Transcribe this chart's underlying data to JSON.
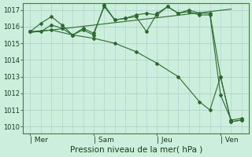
{
  "bg_color": "#cceedd",
  "grid_color": "#aacccc",
  "line_color": "#2d6a2d",
  "marker_color": "#2d6a2d",
  "ylabel_min": 1010,
  "ylabel_max": 1017,
  "xlabel": "Pression niveau de la mer( hPa )",
  "xtick_labels": [
    "| Mer",
    "| Sam",
    "| Jeu",
    "| Ven"
  ],
  "xtick_positions": [
    0,
    36,
    72,
    108
  ],
  "xlim": [
    -4,
    124
  ],
  "ylim": [
    1009.6,
    1017.4
  ],
  "series1_x": [
    0,
    6,
    12,
    18,
    24,
    30,
    36,
    42,
    48,
    54,
    60,
    66,
    72,
    78,
    84,
    90,
    96,
    102,
    108,
    114,
    120
  ],
  "series1_y": [
    1015.7,
    1016.2,
    1016.6,
    1016.1,
    1015.5,
    1015.9,
    1015.6,
    1017.2,
    1016.4,
    1016.5,
    1016.6,
    1015.7,
    1016.8,
    1017.2,
    1016.8,
    1017.0,
    1016.8,
    1016.8,
    1013.0,
    1010.3,
    1010.4
  ],
  "series2_x": [
    0,
    6,
    12,
    18,
    24,
    30,
    36,
    42,
    48,
    54,
    60,
    66,
    72,
    78,
    84,
    90,
    96,
    102,
    108,
    114,
    120
  ],
  "series2_y": [
    1015.7,
    1015.7,
    1016.1,
    1015.9,
    1015.5,
    1015.8,
    1015.5,
    1017.3,
    1016.4,
    1016.5,
    1016.7,
    1016.8,
    1016.7,
    1017.2,
    1016.8,
    1016.9,
    1016.7,
    1016.7,
    1011.9,
    1010.4,
    1010.5
  ],
  "trend_x": [
    0,
    114
  ],
  "trend_y": [
    1015.65,
    1017.05
  ],
  "lower_line_x": [
    0,
    12,
    24,
    36,
    48,
    60,
    72,
    84,
    96,
    102,
    108,
    114,
    120
  ],
  "lower_line_y": [
    1015.7,
    1015.8,
    1015.5,
    1015.3,
    1015.0,
    1014.5,
    1013.8,
    1013.0,
    1011.5,
    1011.0,
    1013.0,
    1010.3,
    1010.4
  ]
}
